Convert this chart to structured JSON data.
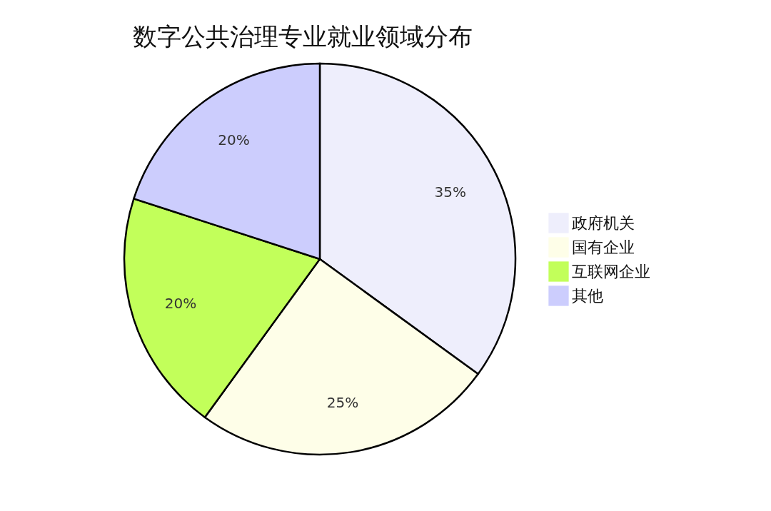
{
  "chart_data": {
    "type": "pie",
    "title": "数字公共治理专业就业领域分布",
    "categories": [
      "政府机关",
      "国有企业",
      "互联网企业",
      "其他"
    ],
    "values": [
      35,
      25,
      20,
      20
    ],
    "value_labels": [
      "35%",
      "25%",
      "20%",
      "20%"
    ],
    "colors": [
      "#eeeefc",
      "#fefee8",
      "#c2ff5a",
      "#cccdfd"
    ],
    "legend": "right"
  }
}
